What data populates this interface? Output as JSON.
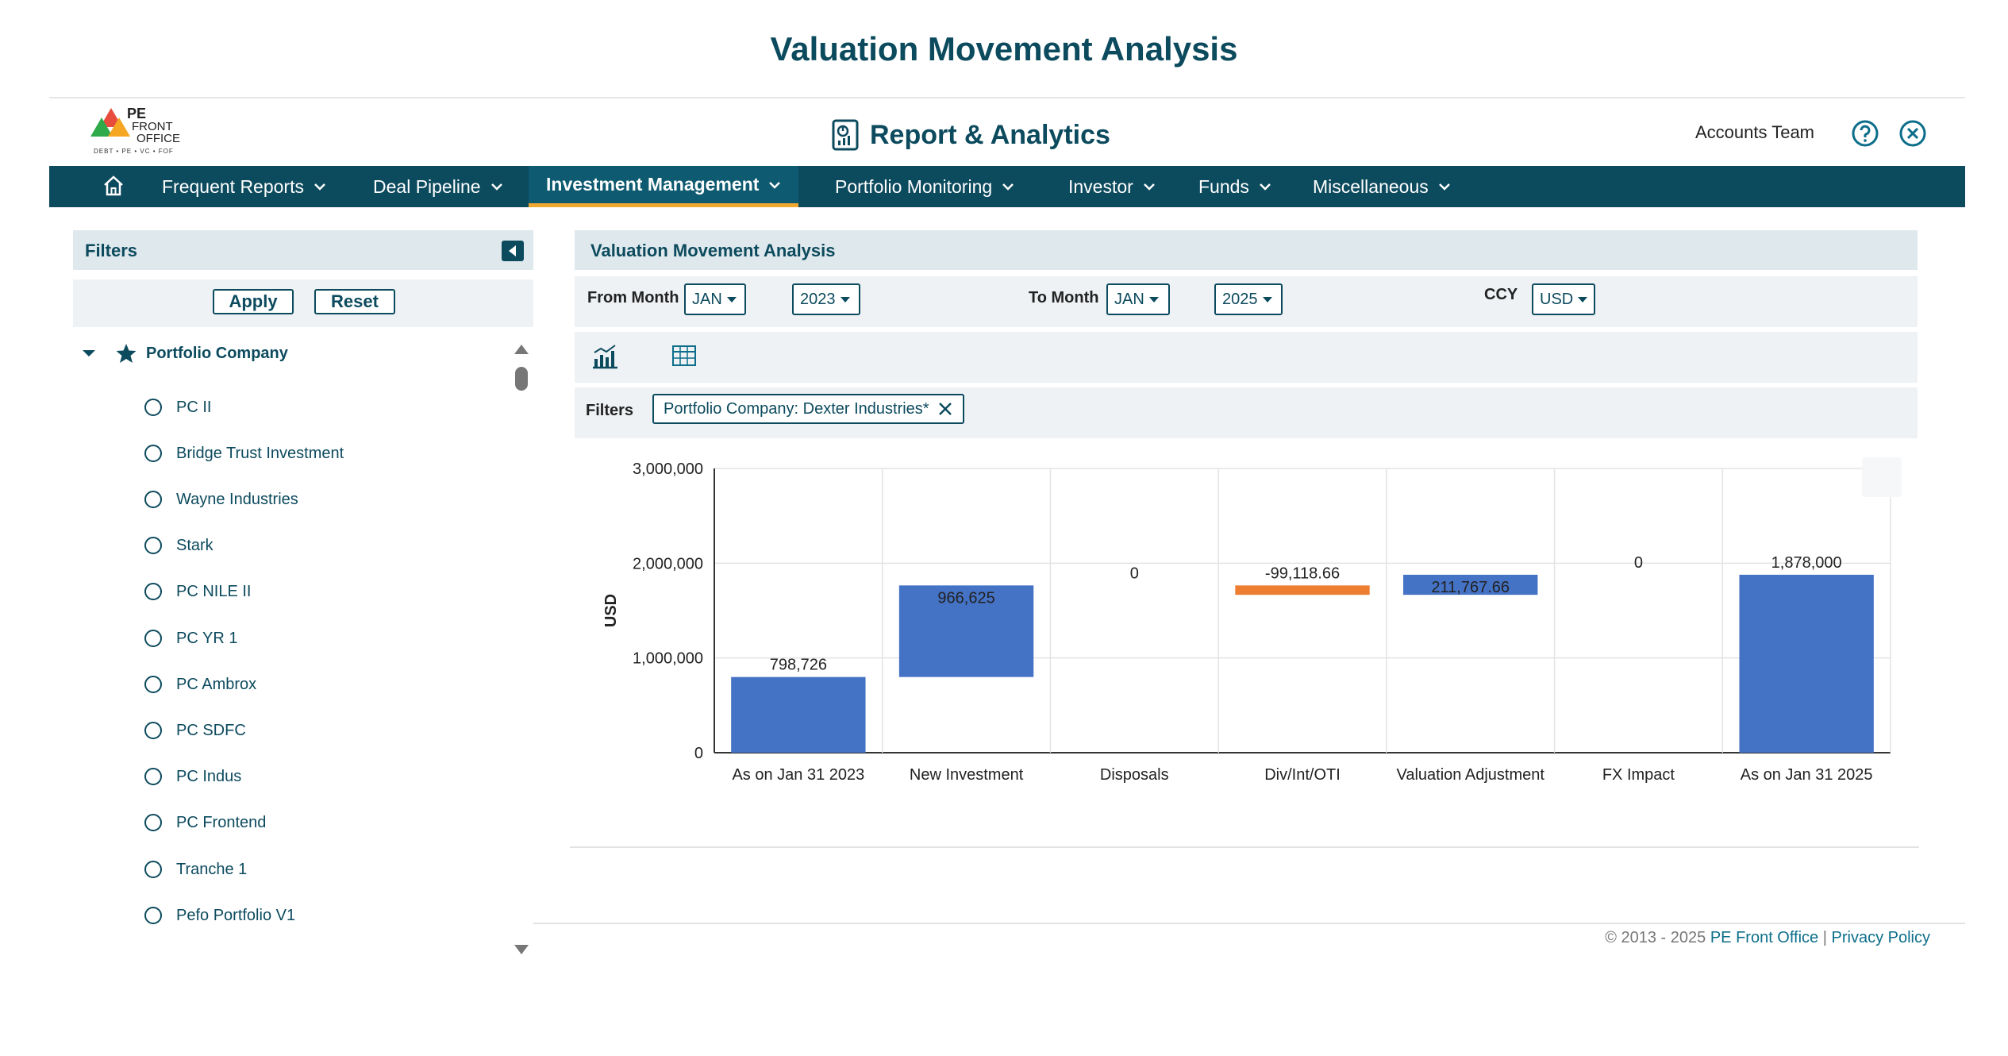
{
  "page_title": "Valuation Movement Analysis",
  "logo": {
    "line1": "PE",
    "line2": "FRONT",
    "line3": "OFFICE",
    "tagline": "DEBT • PE • VC • FOF"
  },
  "header": {
    "app_title": "Report & Analytics",
    "user": "Accounts Team"
  },
  "nav": {
    "items": [
      {
        "label": "Frequent Reports"
      },
      {
        "label": "Deal Pipeline"
      },
      {
        "label": "Investment Management",
        "active": true
      },
      {
        "label": "Portfolio Monitoring"
      },
      {
        "label": "Investor"
      },
      {
        "label": "Funds"
      },
      {
        "label": "Miscellaneous"
      }
    ]
  },
  "filters_panel": {
    "title": "Filters",
    "apply_label": "Apply",
    "reset_label": "Reset",
    "tree_root": "Portfolio Company",
    "companies": [
      "PC II",
      "Bridge Trust Investment",
      "Wayne Industries",
      "Stark",
      "PC NILE II",
      "PC YR 1",
      "PC Ambrox",
      "PC SDFC",
      "PC Indus",
      "PC Frontend",
      "Tranche 1",
      "Pefo Portfolio V1"
    ]
  },
  "report": {
    "title": "Valuation Movement Analysis",
    "from_month_label": "From Month",
    "from_month": "JAN",
    "from_year": "2023",
    "to_month_label": "To Month",
    "to_month": "JAN",
    "to_year": "2025",
    "ccy_label": "CCY",
    "ccy": "USD",
    "filters_label": "Filters",
    "active_filter": "Portfolio Company: Dexter Industries*"
  },
  "chart_data": {
    "type": "bar",
    "subtype": "waterfall",
    "ylabel": "USD",
    "ylim": [
      0,
      3000000
    ],
    "yticks": [
      0,
      1000000,
      2000000,
      3000000
    ],
    "ytick_labels": [
      "0",
      "1,000,000",
      "2,000,000",
      "3,000,000"
    ],
    "grid": true,
    "categories": [
      "As on Jan 31 2023",
      "New Investment",
      "Disposals",
      "Div/Int/OTI",
      "Valuation Adjustment",
      "FX Impact",
      "As on Jan 31 2025"
    ],
    "values": [
      798726,
      966625,
      0,
      -99118.66,
      211767.66,
      0,
      1878000
    ],
    "value_labels": [
      "798,726",
      "966,625",
      "0",
      "-99,118.66",
      "211,767.66",
      "0",
      "1,878,000"
    ],
    "kinds": [
      "total",
      "delta",
      "delta",
      "delta",
      "delta",
      "delta",
      "total"
    ],
    "colors": {
      "increase": "#4472c4",
      "decrease": "#ed7d31",
      "total": "#4472c4"
    }
  },
  "footer": {
    "copyright": "© 2013 - 2025",
    "brand": "PE Front Office",
    "separator": "|",
    "privacy": "Privacy Policy"
  }
}
